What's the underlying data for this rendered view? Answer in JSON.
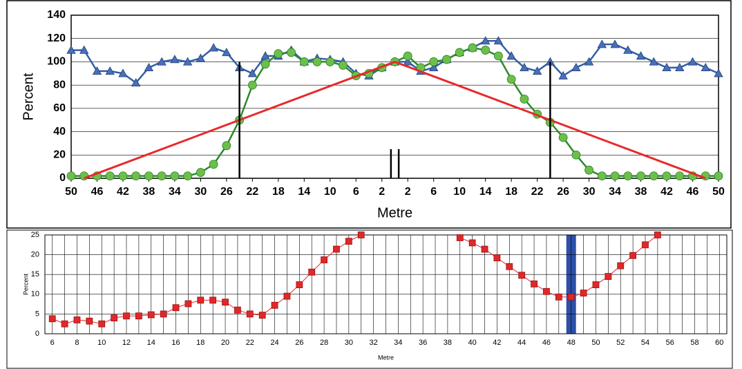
{
  "chart_data": [
    {
      "type": "line",
      "xlabel": "Metre",
      "ylabel": "Percent",
      "xlim": [
        -50,
        50
      ],
      "ylim": [
        0,
        140
      ],
      "xticks": [
        {
          "value": -50,
          "label": "50"
        },
        {
          "value": -46,
          "label": "46"
        },
        {
          "value": -42,
          "label": "42"
        },
        {
          "value": -38,
          "label": "38"
        },
        {
          "value": -34,
          "label": "34"
        },
        {
          "value": -30,
          "label": "30"
        },
        {
          "value": -26,
          "label": "26"
        },
        {
          "value": -22,
          "label": "22"
        },
        {
          "value": -18,
          "label": "18"
        },
        {
          "value": -14,
          "label": "14"
        },
        {
          "value": -10,
          "label": "10"
        },
        {
          "value": -6,
          "label": "6"
        },
        {
          "value": -2,
          "label": "2"
        },
        2,
        6,
        10,
        14,
        18,
        22,
        26,
        30,
        34,
        38,
        42,
        46,
        50
      ],
      "yticks": [
        0,
        20,
        40,
        60,
        80,
        100,
        120,
        140
      ],
      "grid": true,
      "x": [
        -50,
        -48,
        -46,
        -44,
        -42,
        -40,
        -38,
        -36,
        -34,
        -32,
        -30,
        -28,
        -26,
        -24,
        -22,
        -20,
        -18,
        -16,
        -14,
        -12,
        -10,
        -8,
        -6,
        -4,
        -2,
        0,
        2,
        4,
        6,
        8,
        10,
        12,
        14,
        16,
        18,
        20,
        22,
        24,
        26,
        28,
        30,
        32,
        34,
        36,
        38,
        40,
        42,
        44,
        46,
        48,
        50
      ],
      "series": [
        {
          "color": "#2f5fa8",
          "marker": "triangle",
          "marker_color": "#4a6fb8",
          "values": [
            110,
            110,
            92,
            92,
            90,
            82,
            95,
            100,
            102,
            100,
            103,
            112,
            108,
            95,
            90,
            105,
            105,
            110,
            100,
            103,
            102,
            100,
            90,
            88,
            95,
            100,
            100,
            92,
            95,
            102,
            108,
            112,
            118,
            118,
            105,
            95,
            92,
            100,
            88,
            95,
            100,
            115,
            115,
            110,
            105,
            100,
            95,
            95,
            100,
            95,
            90
          ]
        },
        {
          "color": "#2a8a2a",
          "marker": "circle",
          "marker_color": "#6cc04a",
          "values": [
            2,
            2,
            2,
            2,
            2,
            2,
            2,
            2,
            2,
            2,
            5,
            12,
            28,
            50,
            80,
            98,
            107,
            108,
            100,
            100,
            100,
            97,
            88,
            90,
            95,
            100,
            105,
            95,
            100,
            102,
            108,
            112,
            110,
            105,
            85,
            68,
            55,
            48,
            35,
            20,
            7,
            2,
            2,
            2,
            2,
            2,
            2,
            2,
            2,
            2,
            2
          ]
        },
        {
          "color": "#e8282a",
          "marker": "none",
          "x": [
            -48,
            0,
            48
          ],
          "values": [
            0,
            100,
            0
          ]
        }
      ],
      "reference_lines": [
        {
          "x": -24,
          "y": 100
        },
        {
          "x": 24,
          "y": 100
        },
        {
          "x": -0.6,
          "y": 25
        },
        {
          "x": 0.6,
          "y": 25
        }
      ]
    },
    {
      "type": "line",
      "xlabel": "Metre",
      "ylabel": "Percent",
      "xlim": [
        5.4,
        60.6
      ],
      "ylim": [
        0,
        25
      ],
      "xticks": [
        6,
        8,
        10,
        12,
        14,
        16,
        18,
        20,
        22,
        24,
        26,
        28,
        30,
        32,
        34,
        36,
        38,
        40,
        42,
        44,
        46,
        48,
        50,
        52,
        54,
        56,
        58,
        60
      ],
      "minor_xticks": [
        7,
        9,
        11,
        13,
        15,
        17,
        19,
        21,
        23,
        25,
        27,
        29,
        31,
        33,
        35,
        37,
        39,
        41,
        43,
        45,
        47,
        49,
        51,
        53,
        55,
        57,
        59
      ],
      "yticks": [
        0,
        5,
        10,
        15,
        20,
        25
      ],
      "grid": true,
      "highlight_x": 48,
      "highlight_color": "#2c4fa8",
      "x": [
        6,
        7,
        8,
        9,
        10,
        11,
        12,
        13,
        14,
        15,
        16,
        17,
        18,
        19,
        20,
        21,
        22,
        23,
        24,
        25,
        26,
        27,
        28,
        29,
        30,
        31,
        32,
        33,
        34,
        35,
        36,
        37,
        38,
        39,
        40,
        41,
        42,
        43,
        44,
        45,
        46,
        47,
        48,
        49,
        50,
        51,
        52,
        53,
        54,
        55
      ],
      "series": [
        {
          "color": "#e0282a",
          "marker": "square",
          "marker_color": "#e0282a",
          "values": [
            3.8,
            2.5,
            3.5,
            3.2,
            2.5,
            4,
            4.5,
            4.5,
            4.8,
            5,
            6.6,
            7.6,
            8.5,
            8.5,
            8,
            6,
            5,
            4.7,
            7.2,
            9.5,
            12.4,
            15.6,
            18.7,
            21.4,
            23.4,
            25,
            null,
            null,
            null,
            null,
            null,
            null,
            null,
            24.3,
            23,
            21.4,
            19.2,
            17,
            14.8,
            12.6,
            10.7,
            9.3,
            9.3,
            10.3,
            12.4,
            14.5,
            17.2,
            19.8,
            22.5,
            25
          ]
        }
      ]
    }
  ]
}
